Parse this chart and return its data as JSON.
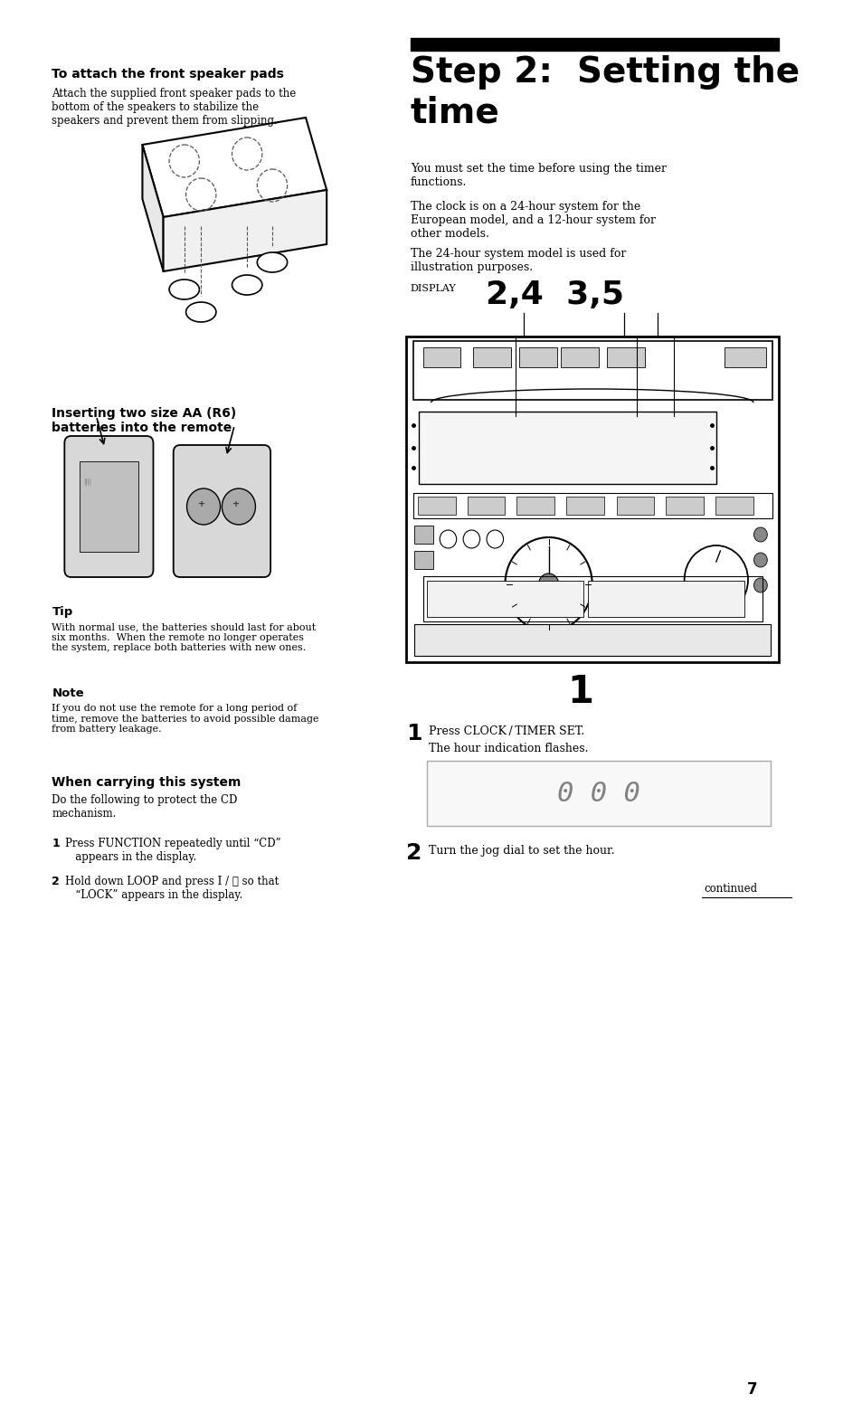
{
  "bg_color": "#ffffff",
  "page_width": 9.54,
  "page_height": 15.72,
  "sections": {
    "attach_pads_title": "To attach the front speaker pads",
    "attach_pads_body": "Attach the supplied front speaker pads to the\nbottom of the speakers to stabilize the\nspeakers and prevent them from slipping.",
    "inserting_title": "Inserting two size AA (R6)\nbatteries into the remote",
    "tip_title": "Tip",
    "tip_body": "With normal use, the batteries should last for about\nsix months.  When the remote no longer operates\nthe system, replace both batteries with new ones.",
    "note_title": "Note",
    "note_body": "If you do not use the remote for a long period of\ntime, remove the batteries to avoid possible damage\nfrom battery leakage.",
    "when_carrying_title": "When carrying this system",
    "when_carrying_body": "Do the following to protect the CD\nmechanism.",
    "step1_carrying": "Press FUNCTION repeatedly until “CD”\n   appears in the display.",
    "step2_carrying": "Hold down LOOP and press I / ⏻ so that\n   “LOCK” appears in the display.",
    "step2_main_title": "Step 2:  Setting the\ntime",
    "step2_bar_color": "#000000",
    "display_label": "DISPLAY",
    "display_numbers": "2,4  3,5",
    "para1": "You must set the time before using the timer\nfunctions.",
    "para2": "The clock is on a 24-hour system for the\nEuropean model, and a 12-hour system for\nother models.",
    "para3": "The 24-hour system model is used for\nillustration purposes.",
    "step1_right_bold": "Press CLOCK / TIMER SET.",
    "step1_right_body": "The hour indication flashes.",
    "step2_right": "Turn the jog dial to set the hour.",
    "continued": "continued",
    "page_num": "7"
  }
}
